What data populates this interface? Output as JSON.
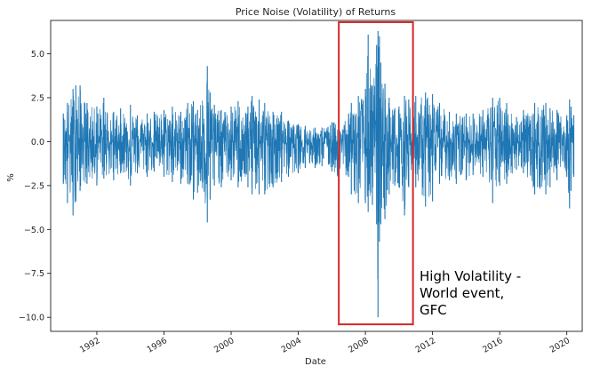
{
  "chart_data": {
    "type": "line",
    "title": "Price Noise (Volatility) of Returns",
    "xlabel": "Date",
    "ylabel": "%",
    "xlim": [
      "1989-04-01",
      "2020-12-01"
    ],
    "ylim": [
      -10.8,
      6.9
    ],
    "x_ticks": [
      "1992",
      "1996",
      "2000",
      "2004",
      "2008",
      "2012",
      "2016",
      "2020"
    ],
    "y_ticks": [
      "5.0",
      "2.5",
      "0.0",
      "−2.5",
      "−5.0",
      "−7.5",
      "−10.0"
    ],
    "y_tick_values": [
      5.0,
      2.5,
      0.0,
      -2.5,
      -5.0,
      -7.5,
      -10.0
    ],
    "grid": false,
    "series": [
      {
        "color": "#1f77b4",
        "x": [
          "1990-01-01",
          "1990-04-01",
          "1990-08-01",
          "1990-10-01",
          "1991-01-01",
          "1991-06-01",
          "1992-01-01",
          "1992-06-01",
          "1993-01-01",
          "1993-06-01",
          "1994-01-01",
          "1994-06-01",
          "1995-01-01",
          "1995-06-01",
          "1996-01-01",
          "1996-07-01",
          "1997-01-01",
          "1997-06-01",
          "1997-10-01",
          "1998-01-01",
          "1998-08-01",
          "1998-10-01",
          "1999-01-01",
          "1999-06-01",
          "2000-01-01",
          "2000-06-01",
          "2001-01-01",
          "2001-04-01",
          "2001-09-01",
          "2002-01-01",
          "2002-07-01",
          "2003-01-01",
          "2003-06-01",
          "2004-01-01",
          "2004-06-01",
          "2005-01-01",
          "2005-06-01",
          "2006-01-01",
          "2006-06-01",
          "2007-01-01",
          "2007-03-01",
          "2007-08-01",
          "2008-01-01",
          "2008-03-01",
          "2008-06-01",
          "2008-09-01",
          "2008-10-01",
          "2008-10-15",
          "2008-11-01",
          "2008-12-01",
          "2009-03-01",
          "2009-06-01",
          "2009-10-01",
          "2010-01-01",
          "2010-05-01",
          "2010-08-01",
          "2011-01-01",
          "2011-08-01",
          "2012-01-01",
          "2012-06-01",
          "2013-01-01",
          "2013-06-01",
          "2014-01-01",
          "2014-06-01",
          "2015-01-01",
          "2015-08-01",
          "2016-01-01",
          "2016-06-01",
          "2017-01-01",
          "2017-06-01",
          "2018-01-01",
          "2018-02-01",
          "2018-10-01",
          "2019-01-01",
          "2019-06-01",
          "2020-01-01",
          "2020-03-01",
          "2020-04-01",
          "2020-06-01"
        ],
        "upper": [
          1.6,
          2.2,
          3.0,
          3.2,
          3.2,
          2.2,
          2.0,
          2.5,
          1.7,
          1.9,
          2.1,
          1.5,
          1.6,
          1.7,
          1.8,
          2.0,
          1.7,
          2.2,
          2.3,
          1.8,
          4.3,
          2.8,
          2.1,
          1.8,
          2.0,
          2.3,
          2.0,
          2.6,
          2.4,
          2.2,
          1.7,
          1.7,
          1.2,
          1.0,
          0.9,
          0.8,
          0.8,
          1.1,
          1.4,
          1.6,
          2.2,
          2.6,
          3.0,
          6.1,
          3.2,
          5.5,
          6.3,
          5.4,
          6.0,
          4.5,
          3.3,
          2.5,
          1.9,
          2.0,
          2.6,
          2.4,
          2.6,
          2.8,
          2.7,
          2.2,
          1.7,
          1.6,
          1.6,
          1.6,
          1.8,
          2.5,
          2.5,
          2.2,
          1.4,
          1.8,
          1.6,
          2.2,
          2.2,
          1.9,
          1.8,
          1.5,
          2.4,
          2.0,
          1.5
        ],
        "lower": [
          -2.4,
          -3.5,
          -4.2,
          -3.4,
          -2.8,
          -2.4,
          -2.5,
          -2.1,
          -2.2,
          -1.8,
          -2.5,
          -1.8,
          -2.0,
          -1.7,
          -2.0,
          -2.3,
          -2.4,
          -2.4,
          -3.3,
          -2.9,
          -4.6,
          -3.3,
          -2.5,
          -2.6,
          -2.2,
          -2.6,
          -2.6,
          -3.0,
          -3.0,
          -3.0,
          -2.6,
          -2.3,
          -2.0,
          -1.8,
          -1.5,
          -1.5,
          -1.4,
          -1.7,
          -2.3,
          -2.0,
          -3.0,
          -3.5,
          -3.5,
          -4.0,
          -3.6,
          -4.7,
          -10.0,
          -4.6,
          -5.7,
          -4.7,
          -4.4,
          -3.0,
          -2.5,
          -2.6,
          -4.2,
          -2.6,
          -2.6,
          -3.7,
          -3.4,
          -2.4,
          -2.2,
          -2.4,
          -2.2,
          -1.9,
          -2.0,
          -3.5,
          -2.5,
          -2.4,
          -1.6,
          -1.8,
          -2.6,
          -3.0,
          -3.0,
          -2.6,
          -2.2,
          -2.0,
          -3.8,
          -2.8,
          -2.0
        ]
      }
    ],
    "annotation": {
      "lines": [
        "High Volatility -",
        "World event,",
        "GFC"
      ],
      "box_color": "#d62728",
      "box_x_range": [
        "2006-06-01",
        "2010-11-01"
      ],
      "box_y_range": [
        -10.4,
        6.8
      ]
    }
  }
}
